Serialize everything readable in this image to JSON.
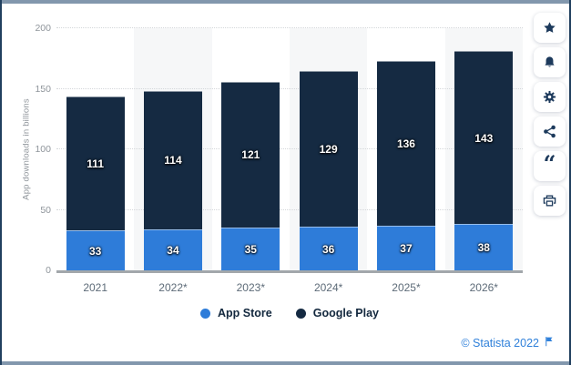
{
  "chart_data": {
    "type": "bar",
    "stacked": true,
    "title": "",
    "xlabel": "",
    "ylabel": "App downloads in billions",
    "ylim": [
      0,
      200
    ],
    "yticks": [
      0,
      50,
      100,
      150,
      200
    ],
    "grid": true,
    "legend_position": "bottom",
    "band_color": "#f6f7f8",
    "categories": [
      "2021",
      "2022*",
      "2023*",
      "2024*",
      "2025*",
      "2026*"
    ],
    "series": [
      {
        "name": "App Store",
        "color": "#2e7cd9",
        "values": [
          33,
          34,
          35,
          36,
          37,
          38
        ]
      },
      {
        "name": "Google Play",
        "color": "#152a42",
        "values": [
          111,
          114,
          121,
          129,
          136,
          143
        ]
      }
    ],
    "totals": [
      144,
      148,
      156,
      165,
      173,
      181
    ]
  },
  "toolbar": {
    "buttons": [
      {
        "name": "favorite",
        "icon": "star-icon"
      },
      {
        "name": "notifications",
        "icon": "bell-icon"
      },
      {
        "name": "settings",
        "icon": "gear-icon"
      },
      {
        "name": "share",
        "icon": "share-icon"
      },
      {
        "name": "cite",
        "icon": "quote-icon"
      },
      {
        "name": "print",
        "icon": "printer-icon"
      }
    ]
  },
  "footer": {
    "copyright": "© Statista 2022"
  },
  "colors": {
    "accent_blue": "#2e7cd9",
    "navy": "#152a42",
    "band": "#f6f7f8",
    "axis_line": "#a2a7ab",
    "tick_text": "#8f959b",
    "footer_link": "#2f80da",
    "frame_side": "#21405f",
    "frame_top": "#8297ad"
  }
}
